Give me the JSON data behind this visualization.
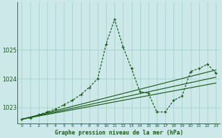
{
  "title": "Graphe pression niveau de la mer (hPa)",
  "bg_color": "#cce8e8",
  "grid_color": "#aad4d4",
  "line_color": "#1a5c1a",
  "xlim": [
    -0.5,
    23.5
  ],
  "ylim": [
    1022.45,
    1026.65
  ],
  "y_ticks": [
    1023,
    1024,
    1025
  ],
  "x_ticks": [
    0,
    1,
    2,
    3,
    4,
    5,
    6,
    7,
    8,
    9,
    10,
    11,
    12,
    13,
    14,
    15,
    16,
    17,
    18,
    19,
    20,
    21,
    22,
    23
  ],
  "straight_lines": [
    {
      "x": [
        0,
        23
      ],
      "y": [
        1022.6,
        1023.85
      ]
    },
    {
      "x": [
        0,
        23
      ],
      "y": [
        1022.6,
        1024.05
      ]
    },
    {
      "x": [
        0,
        23
      ],
      "y": [
        1022.6,
        1024.3
      ]
    }
  ],
  "main_x": [
    0,
    1,
    2,
    3,
    4,
    5,
    6,
    7,
    8,
    9,
    10,
    11,
    12,
    13,
    14,
    15,
    16,
    17,
    18,
    19,
    20,
    21,
    22,
    23
  ],
  "main_y": [
    1022.6,
    1022.65,
    1022.75,
    1022.85,
    1022.95,
    1023.1,
    1023.25,
    1023.45,
    1023.7,
    1024.0,
    1025.2,
    1026.05,
    1025.1,
    1024.35,
    1023.55,
    1023.5,
    1022.85,
    1022.85,
    1023.25,
    1023.4,
    1024.25,
    1024.35,
    1024.5,
    1024.2
  ]
}
